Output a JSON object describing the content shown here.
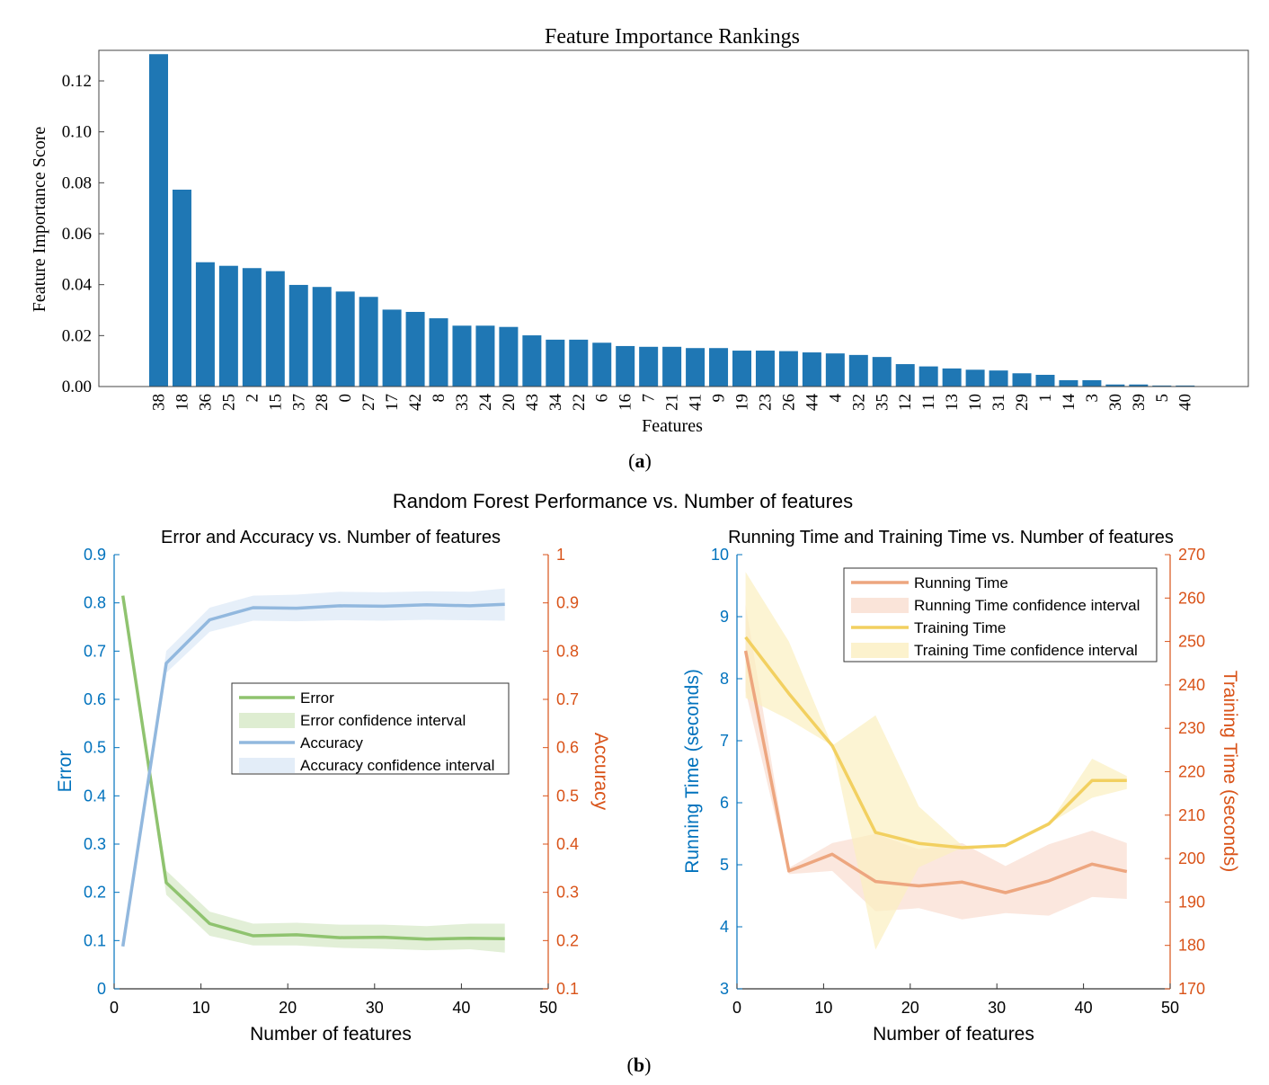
{
  "figure": {
    "panel_a_caption": "a",
    "panel_b_caption": "b",
    "panel_b_title": "Random Forest Performance vs. Number of features"
  },
  "chart_data": [
    {
      "type": "bar",
      "title": "Feature Importance Rankings",
      "xlabel": "Features",
      "ylabel": "Feature Importance Score",
      "ylim": [
        0,
        0.132
      ],
      "yticks": [
        "0.00",
        "0.02",
        "0.04",
        "0.06",
        "0.08",
        "0.10",
        "0.12"
      ],
      "bar_color": "#1f77b4",
      "categories": [
        "38",
        "18",
        "36",
        "25",
        "2",
        "15",
        "37",
        "28",
        "0",
        "27",
        "17",
        "42",
        "8",
        "33",
        "24",
        "20",
        "43",
        "34",
        "22",
        "6",
        "16",
        "7",
        "21",
        "41",
        "9",
        "19",
        "23",
        "26",
        "44",
        "4",
        "32",
        "35",
        "12",
        "11",
        "13",
        "10",
        "31",
        "29",
        "1",
        "14",
        "3",
        "30",
        "39",
        "5",
        "40"
      ],
      "values": [
        0.1305,
        0.0773,
        0.0488,
        0.0474,
        0.0465,
        0.0453,
        0.0399,
        0.0391,
        0.0373,
        0.0352,
        0.0302,
        0.0293,
        0.0268,
        0.0239,
        0.0239,
        0.0234,
        0.0201,
        0.0184,
        0.0184,
        0.0172,
        0.0159,
        0.0156,
        0.0156,
        0.0151,
        0.0151,
        0.0141,
        0.0141,
        0.0139,
        0.0134,
        0.013,
        0.0124,
        0.0116,
        0.0088,
        0.0079,
        0.0071,
        0.0066,
        0.0063,
        0.0052,
        0.0046,
        0.0025,
        0.0025,
        0.0008,
        0.0008,
        0.0004,
        0.0004
      ],
      "grid": false
    },
    {
      "type": "line",
      "title": "Error and Accuracy vs. Number of features",
      "xlabel": "Number of features",
      "ylabel": "Error",
      "y2label": "Accuracy",
      "xlim": [
        0,
        50
      ],
      "ylim": [
        0,
        0.9
      ],
      "y2lim": [
        0.1,
        1
      ],
      "xticks": [
        0,
        10,
        20,
        30,
        40,
        50
      ],
      "yticks": [
        "0",
        "0.1",
        "0.2",
        "0.3",
        "0.4",
        "0.5",
        "0.6",
        "0.7",
        "0.8",
        "0.9"
      ],
      "y2ticks": [
        "0.1",
        "0.2",
        "0.3",
        "0.4",
        "0.5",
        "0.6",
        "0.7",
        "0.8",
        "0.9",
        "1"
      ],
      "axis_color_left": "#0072bd",
      "axis_color_right": "#d95319",
      "legend_position": "center-right",
      "x": [
        1,
        6,
        11,
        16,
        21,
        26,
        31,
        36,
        41,
        45
      ],
      "series": [
        {
          "name": "Error",
          "axis": "left",
          "color": "#8fc36f",
          "values": [
            0.815,
            0.22,
            0.135,
            0.11,
            0.112,
            0.106,
            0.107,
            0.103,
            0.105,
            0.104
          ]
        },
        {
          "name": "Error confidence interval",
          "axis": "left",
          "band": true,
          "color": "#d6e8c6",
          "lower": [
            0.815,
            0.195,
            0.11,
            0.09,
            0.09,
            0.085,
            0.083,
            0.08,
            0.082,
            0.075
          ],
          "upper": [
            0.815,
            0.245,
            0.16,
            0.135,
            0.137,
            0.133,
            0.133,
            0.13,
            0.135,
            0.135
          ]
        },
        {
          "name": "Accuracy",
          "axis": "right",
          "color": "#92b8de",
          "values": [
            0.188,
            0.775,
            0.865,
            0.89,
            0.889,
            0.894,
            0.893,
            0.896,
            0.894,
            0.897
          ]
        },
        {
          "name": "Accuracy confidence interval",
          "axis": "right",
          "band": true,
          "color": "#dce8f6",
          "lower": [
            0.188,
            0.755,
            0.84,
            0.863,
            0.862,
            0.864,
            0.863,
            0.865,
            0.864,
            0.863
          ],
          "upper": [
            0.188,
            0.8,
            0.89,
            0.915,
            0.917,
            0.923,
            0.922,
            0.924,
            0.923,
            0.93
          ]
        }
      ]
    },
    {
      "type": "line",
      "title": "Running Time and Training Time vs. Number of features",
      "xlabel": "Number of features",
      "ylabel": "Running Time (seconds)",
      "y2label": "Training Time (seconds)",
      "xlim": [
        0,
        50
      ],
      "ylim": [
        3,
        10
      ],
      "y2lim": [
        170,
        270
      ],
      "xticks": [
        0,
        10,
        20,
        30,
        40,
        50
      ],
      "yticks": [
        "3",
        "4",
        "5",
        "6",
        "7",
        "8",
        "9",
        "10"
      ],
      "y2ticks": [
        "170",
        "180",
        "190",
        "200",
        "210",
        "220",
        "230",
        "240",
        "250",
        "260",
        "270"
      ],
      "axis_color_left": "#0072bd",
      "axis_color_right": "#d95319",
      "legend_position": "top-right",
      "x": [
        1,
        6,
        11,
        16,
        21,
        26,
        31,
        36,
        41,
        45
      ],
      "series": [
        {
          "name": "Running Time",
          "axis": "left",
          "color": "#eda67f",
          "values": [
            8.45,
            4.9,
            5.17,
            4.73,
            4.66,
            4.72,
            4.55,
            4.74,
            5.01,
            4.89
          ]
        },
        {
          "name": "Running Time confidence interval",
          "axis": "left",
          "band": true,
          "color": "#f9ddd0",
          "lower": [
            7.8,
            4.85,
            4.9,
            4.25,
            4.3,
            4.12,
            4.22,
            4.18,
            4.48,
            4.45
          ],
          "upper": [
            9.2,
            4.95,
            5.35,
            5.5,
            5.25,
            5.35,
            4.98,
            5.33,
            5.55,
            5.35
          ]
        },
        {
          "name": "Training Time",
          "axis": "right",
          "color": "#f2d060",
          "values": [
            251,
            238,
            226,
            206,
            203.5,
            202.5,
            203,
            208,
            218,
            218
          ]
        },
        {
          "name": "Training Time confidence interval",
          "axis": "right",
          "band": true,
          "color": "#fbefc0",
          "lower": [
            237,
            232,
            226,
            179,
            198,
            202.5,
            203,
            208,
            214,
            216
          ],
          "upper": [
            266,
            250,
            226,
            233,
            212,
            203,
            203,
            208,
            223,
            219
          ]
        }
      ]
    }
  ]
}
